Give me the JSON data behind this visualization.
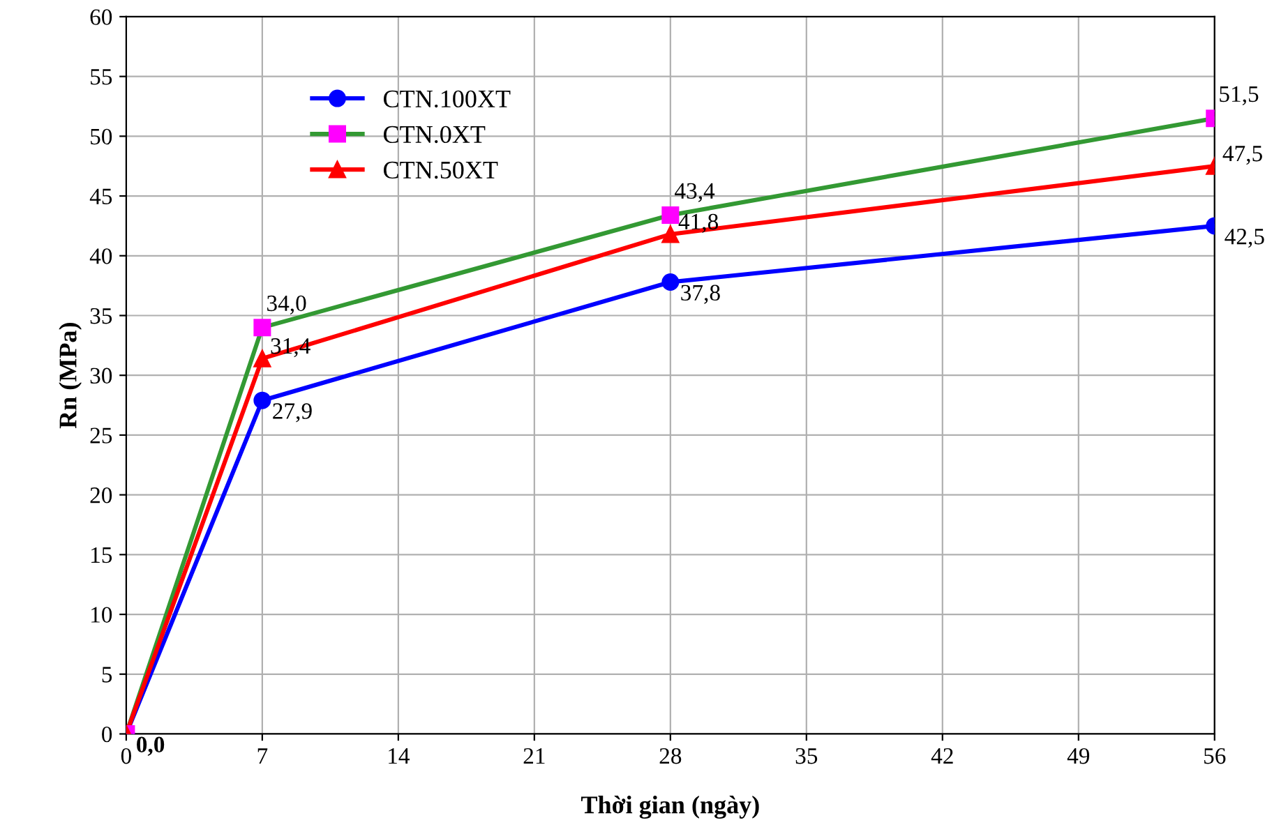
{
  "chart_data": {
    "type": "line",
    "xlabel": "Thời gian (ngày)",
    "ylabel": "Rn (MPa)",
    "x": [
      0,
      7,
      28,
      56
    ],
    "series": [
      {
        "name": "CTN.100XT",
        "color": "#0000ff",
        "marker": "circle",
        "values": [
          0,
          27.9,
          37.8,
          42.5
        ],
        "value_labels": [
          "0,0",
          "27,9",
          "37,8",
          "42,5"
        ]
      },
      {
        "name": "CTN.0XT",
        "color": "#339933",
        "colors": [
          "#ff00ff",
          "#ff00ff",
          "#ff00ff",
          "#ff00ff"
        ],
        "marker": "square",
        "values": [
          0,
          34.0,
          43.4,
          51.5
        ],
        "value_labels": [
          null,
          "34,0",
          "43,4",
          "51,5"
        ]
      },
      {
        "name": "CTN.50XT",
        "color": "#ff0000",
        "marker": "triangle",
        "values": [
          0,
          31.4,
          41.8,
          47.5
        ],
        "value_labels": [
          null,
          "31,4",
          "41,8",
          "47,5"
        ]
      }
    ],
    "xlim": [
      0,
      56
    ],
    "xticks": [
      0,
      7,
      14,
      21,
      28,
      35,
      42,
      49,
      56
    ],
    "ylim": [
      0,
      60
    ],
    "yticks": [
      0,
      5,
      10,
      15,
      20,
      25,
      30,
      35,
      40,
      45,
      50,
      55,
      60
    ],
    "grid": true,
    "legend": "top left"
  }
}
